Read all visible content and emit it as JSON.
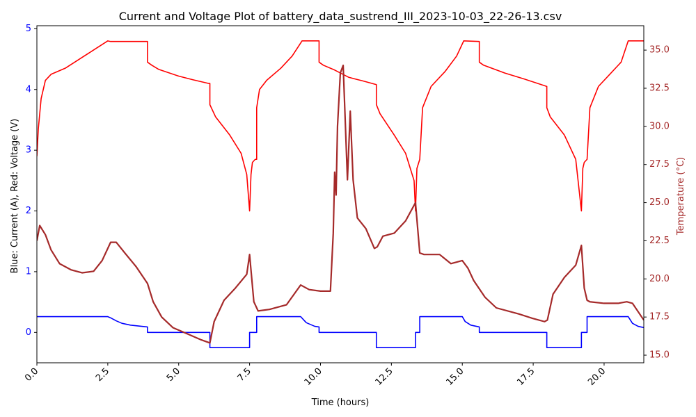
{
  "chart_data": {
    "type": "line",
    "title": "Current and Voltage Plot of battery_data_sustrend_III_2023-10-03_22-26-13.csv",
    "xlabel": "Time (hours)",
    "ylabel_left": "Blue: Current (A), Red: Voltage (V)",
    "ylabel_right": "Temperature (°C)",
    "xlim": [
      0,
      21.4
    ],
    "ylim_left": [
      -0.5,
      5.05
    ],
    "ylim_right": [
      14.5,
      36.6
    ],
    "x_ticks": [
      0.0,
      2.5,
      5.0,
      7.5,
      10.0,
      12.5,
      15.0,
      17.5,
      20.0
    ],
    "x_tick_labels": [
      "0.0",
      "2.5",
      "5.0",
      "7.5",
      "10.0",
      "12.5",
      "15.0",
      "17.5",
      "20.0"
    ],
    "left_ticks": [
      0,
      1,
      2,
      3,
      4,
      5
    ],
    "left_tick_labels": [
      "0",
      "1",
      "2",
      "3",
      "4",
      "5"
    ],
    "right_ticks": [
      15.0,
      17.5,
      20.0,
      22.5,
      25.0,
      27.5,
      30.0,
      32.5,
      35.0
    ],
    "right_tick_labels": [
      "15.0",
      "17.5",
      "20.0",
      "22.5",
      "25.0",
      "27.5",
      "30.0",
      "32.5",
      "35.0"
    ],
    "grid": false,
    "colors": {
      "current": "#0000ff",
      "voltage": "#ff0000",
      "temperature": "#a52a2a",
      "left_axis_text": "#0000ff",
      "right_axis_text": "#a52a2a"
    },
    "series": [
      {
        "axis": "left",
        "color": "#0000ff",
        "x": [
          0,
          2.5,
          2.6,
          2.8,
          3.0,
          3.3,
          3.9,
          3.9,
          6.1,
          6.1,
          7.5,
          7.5,
          7.75,
          7.75,
          9.3,
          9.5,
          9.8,
          9.95,
          9.95,
          11.97,
          11.97,
          13.35,
          13.35,
          13.5,
          13.5,
          15.0,
          15.1,
          15.3,
          15.6,
          15.6,
          17.98,
          17.98,
          19.2,
          19.2,
          19.4,
          19.4,
          20.85,
          21.0,
          21.2,
          21.4
        ],
        "y": [
          0.26,
          0.26,
          0.24,
          0.19,
          0.15,
          0.12,
          0.09,
          0.0,
          0.0,
          -0.25,
          -0.25,
          0.0,
          0.0,
          0.26,
          0.26,
          0.16,
          0.1,
          0.09,
          0.0,
          0.0,
          -0.25,
          -0.25,
          0.0,
          0.0,
          0.26,
          0.26,
          0.18,
          0.12,
          0.09,
          0.0,
          0.0,
          -0.25,
          -0.25,
          0.0,
          0.0,
          0.26,
          0.26,
          0.15,
          0.1,
          0.08
        ]
      },
      {
        "axis": "left",
        "color": "#ff0000",
        "x": [
          0,
          0.05,
          0.15,
          0.3,
          0.5,
          1.0,
          1.5,
          2.0,
          2.5,
          2.6,
          3.9,
          3.9,
          4.05,
          4.3,
          5.0,
          5.5,
          6.05,
          6.1,
          6.1,
          6.3,
          6.8,
          7.2,
          7.4,
          7.5,
          7.5,
          7.55,
          7.6,
          7.7,
          7.75,
          7.75,
          7.85,
          8.1,
          8.6,
          9.0,
          9.35,
          9.95,
          9.95,
          10.1,
          10.5,
          11.0,
          11.5,
          11.97,
          11.97,
          12.1,
          12.6,
          13.0,
          13.3,
          13.35,
          13.35,
          13.4,
          13.5,
          13.5,
          13.6,
          13.9,
          14.4,
          14.8,
          15.05,
          15.6,
          15.6,
          15.75,
          16.5,
          17.2,
          17.98,
          17.98,
          18.1,
          18.6,
          19.0,
          19.2,
          19.2,
          19.25,
          19.3,
          19.4,
          19.4,
          19.5,
          19.8,
          20.2,
          20.6,
          20.85,
          21.4
        ],
        "y": [
          2.9,
          3.35,
          3.85,
          4.15,
          4.25,
          4.35,
          4.5,
          4.65,
          4.8,
          4.79,
          4.79,
          4.45,
          4.4,
          4.33,
          4.22,
          4.16,
          4.1,
          4.1,
          3.75,
          3.55,
          3.25,
          2.95,
          2.6,
          2.0,
          2.0,
          2.6,
          2.8,
          2.85,
          2.85,
          3.7,
          4.0,
          4.15,
          4.35,
          4.55,
          4.8,
          4.8,
          4.45,
          4.4,
          4.32,
          4.2,
          4.14,
          4.08,
          3.75,
          3.6,
          3.25,
          2.95,
          2.5,
          2.0,
          2.0,
          2.7,
          2.85,
          2.85,
          3.7,
          4.05,
          4.3,
          4.55,
          4.8,
          4.79,
          4.45,
          4.4,
          4.27,
          4.17,
          4.05,
          3.7,
          3.55,
          3.25,
          2.85,
          2.0,
          2.0,
          2.7,
          2.8,
          2.85,
          2.85,
          3.7,
          4.05,
          4.25,
          4.45,
          4.8,
          4.8
        ]
      },
      {
        "axis": "right",
        "color": "#a52a2a",
        "x": [
          0,
          0.1,
          0.3,
          0.5,
          0.8,
          1.2,
          1.6,
          2.0,
          2.3,
          2.6,
          2.8,
          3.1,
          3.5,
          3.9,
          4.1,
          4.4,
          4.8,
          5.3,
          5.8,
          6.1,
          6.25,
          6.6,
          7.0,
          7.4,
          7.5,
          7.65,
          7.8,
          8.2,
          8.8,
          9.3,
          9.6,
          10.0,
          10.35,
          10.45,
          10.5,
          10.55,
          10.6,
          10.7,
          10.8,
          10.9,
          10.95,
          11.05,
          11.15,
          11.3,
          11.6,
          11.9,
          12.0,
          12.2,
          12.6,
          13.0,
          13.35,
          13.5,
          13.65,
          14.2,
          14.6,
          15.0,
          15.2,
          15.4,
          15.8,
          16.2,
          17.0,
          17.5,
          17.9,
          18.0,
          18.2,
          18.6,
          19.0,
          19.2,
          19.3,
          19.4,
          19.5,
          20.0,
          20.5,
          20.8,
          21.0,
          21.4
        ],
        "y": [
          22.5,
          23.5,
          22.9,
          21.9,
          21.0,
          20.6,
          20.4,
          20.5,
          21.2,
          22.4,
          22.4,
          21.7,
          20.8,
          19.7,
          18.5,
          17.5,
          16.8,
          16.4,
          16.0,
          15.8,
          17.2,
          18.6,
          19.4,
          20.3,
          21.6,
          18.5,
          17.9,
          18.0,
          18.3,
          19.6,
          19.3,
          19.2,
          19.2,
          23.0,
          27.0,
          25.5,
          30.0,
          33.5,
          34.0,
          29.0,
          26.5,
          31.0,
          26.5,
          24.0,
          23.3,
          22.0,
          22.1,
          22.8,
          23.0,
          23.8,
          25.0,
          21.7,
          21.6,
          21.6,
          21.0,
          21.2,
          20.7,
          19.9,
          18.8,
          18.1,
          17.7,
          17.4,
          17.2,
          17.3,
          19.0,
          20.1,
          20.9,
          22.2,
          19.4,
          18.6,
          18.5,
          18.4,
          18.4,
          18.5,
          18.4,
          17.3
        ]
      }
    ]
  }
}
